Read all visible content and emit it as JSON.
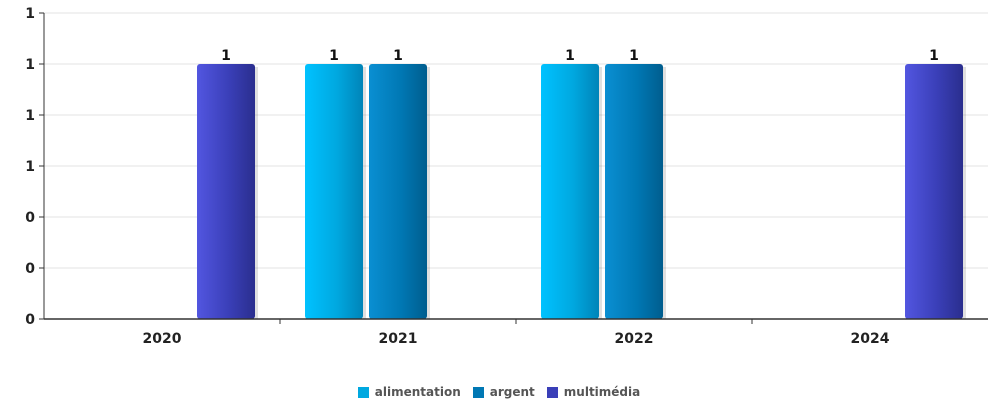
{
  "chart_data": {
    "type": "bar",
    "categories": [
      "2020",
      "2021",
      "2022",
      "2024"
    ],
    "series": [
      {
        "name": "alimentation",
        "color": "#00a8e0",
        "values": [
          null,
          1,
          1,
          null
        ]
      },
      {
        "name": "argent",
        "color": "#0078b4",
        "values": [
          null,
          1,
          1,
          null
        ]
      },
      {
        "name": "multimédia",
        "color": "#3a3fb8",
        "values": [
          1,
          null,
          null,
          1
        ]
      }
    ],
    "data_labels": {
      "2020": [
        "",
        "",
        "1"
      ],
      "2021": [
        "1",
        "1",
        ""
      ],
      "2022": [
        "1",
        "1",
        ""
      ],
      "2024": [
        "",
        "",
        "1"
      ]
    },
    "ytick_labels": [
      "0",
      "0",
      "0",
      "1",
      "1",
      "1",
      "1"
    ],
    "ylim": [
      0,
      1.2
    ],
    "grid": true,
    "legend_position": "bottom"
  }
}
